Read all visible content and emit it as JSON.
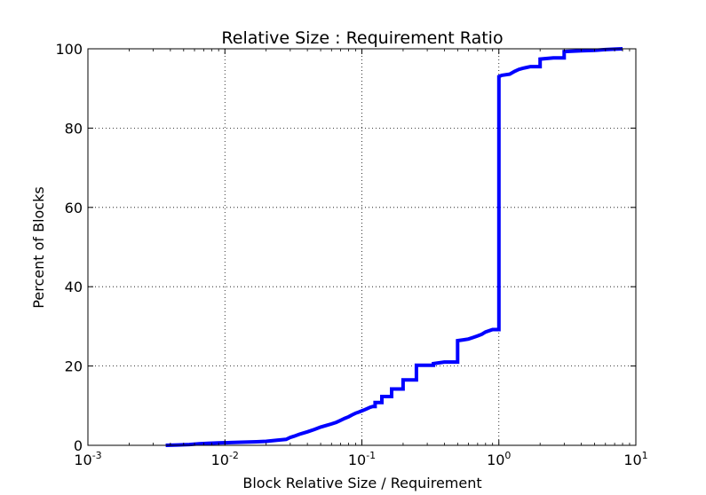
{
  "chart_data": {
    "type": "line",
    "title": "Relative Size : Requirement Ratio",
    "xlabel": "Block Relative Size / Requirement",
    "ylabel": "Percent of Blocks",
    "xscale": "log",
    "xlim": [
      0.001,
      10
    ],
    "ylim": [
      0,
      100
    ],
    "grid": true,
    "line_color": "#0000ff",
    "x_ticks": [
      {
        "value": 0.001,
        "base": "10",
        "exp": "-3"
      },
      {
        "value": 0.01,
        "base": "10",
        "exp": "-2"
      },
      {
        "value": 0.1,
        "base": "10",
        "exp": "-1"
      },
      {
        "value": 1,
        "base": "10",
        "exp": "0"
      },
      {
        "value": 10,
        "base": "10",
        "exp": "1"
      }
    ],
    "y_ticks": [
      {
        "value": 0,
        "label": "0"
      },
      {
        "value": 20,
        "label": "20"
      },
      {
        "value": 40,
        "label": "40"
      },
      {
        "value": 60,
        "label": "60"
      },
      {
        "value": 80,
        "label": "80"
      },
      {
        "value": 100,
        "label": "100"
      }
    ],
    "series": [
      {
        "x": [
          0.0037,
          0.0045,
          0.0055,
          0.0065,
          0.0075,
          0.009,
          0.011,
          0.014,
          0.017,
          0.02,
          0.024,
          0.028,
          0.03,
          0.032,
          0.035,
          0.04,
          0.045,
          0.05,
          0.055,
          0.06,
          0.065,
          0.07,
          0.075,
          0.08,
          0.085,
          0.09,
          0.095,
          0.1,
          0.105,
          0.11,
          0.115,
          0.12,
          0.125,
          0.125,
          0.14,
          0.14,
          0.165,
          0.165,
          0.2,
          0.2,
          0.25,
          0.25,
          0.333,
          0.333,
          0.4,
          0.5,
          0.5,
          0.55,
          0.6,
          0.65,
          0.7,
          0.75,
          0.8,
          0.9,
          1.0,
          1.0,
          1.05,
          1.2,
          1.3,
          1.4,
          1.5,
          1.6,
          1.7,
          2.0,
          2.0,
          2.5,
          3.0,
          3.0,
          4.0,
          5.0,
          6.0,
          7.0,
          8.0
        ],
        "y": [
          0.0,
          0.1,
          0.2,
          0.4,
          0.5,
          0.6,
          0.7,
          0.8,
          0.9,
          1.0,
          1.3,
          1.5,
          2.0,
          2.3,
          2.8,
          3.4,
          4.0,
          4.6,
          5.0,
          5.4,
          5.8,
          6.3,
          6.8,
          7.2,
          7.7,
          8.1,
          8.4,
          8.7,
          9.0,
          9.3,
          9.6,
          9.8,
          9.8,
          10.8,
          10.8,
          12.3,
          12.3,
          14.2,
          14.2,
          16.5,
          16.5,
          20.2,
          20.2,
          20.6,
          21.0,
          21.0,
          26.4,
          26.6,
          26.8,
          27.2,
          27.6,
          28.0,
          28.6,
          29.2,
          29.2,
          93.0,
          93.3,
          93.6,
          94.3,
          94.8,
          95.1,
          95.3,
          95.5,
          95.5,
          97.4,
          97.7,
          97.7,
          99.3,
          99.5,
          99.6,
          99.8,
          99.9,
          100.0
        ]
      }
    ]
  }
}
